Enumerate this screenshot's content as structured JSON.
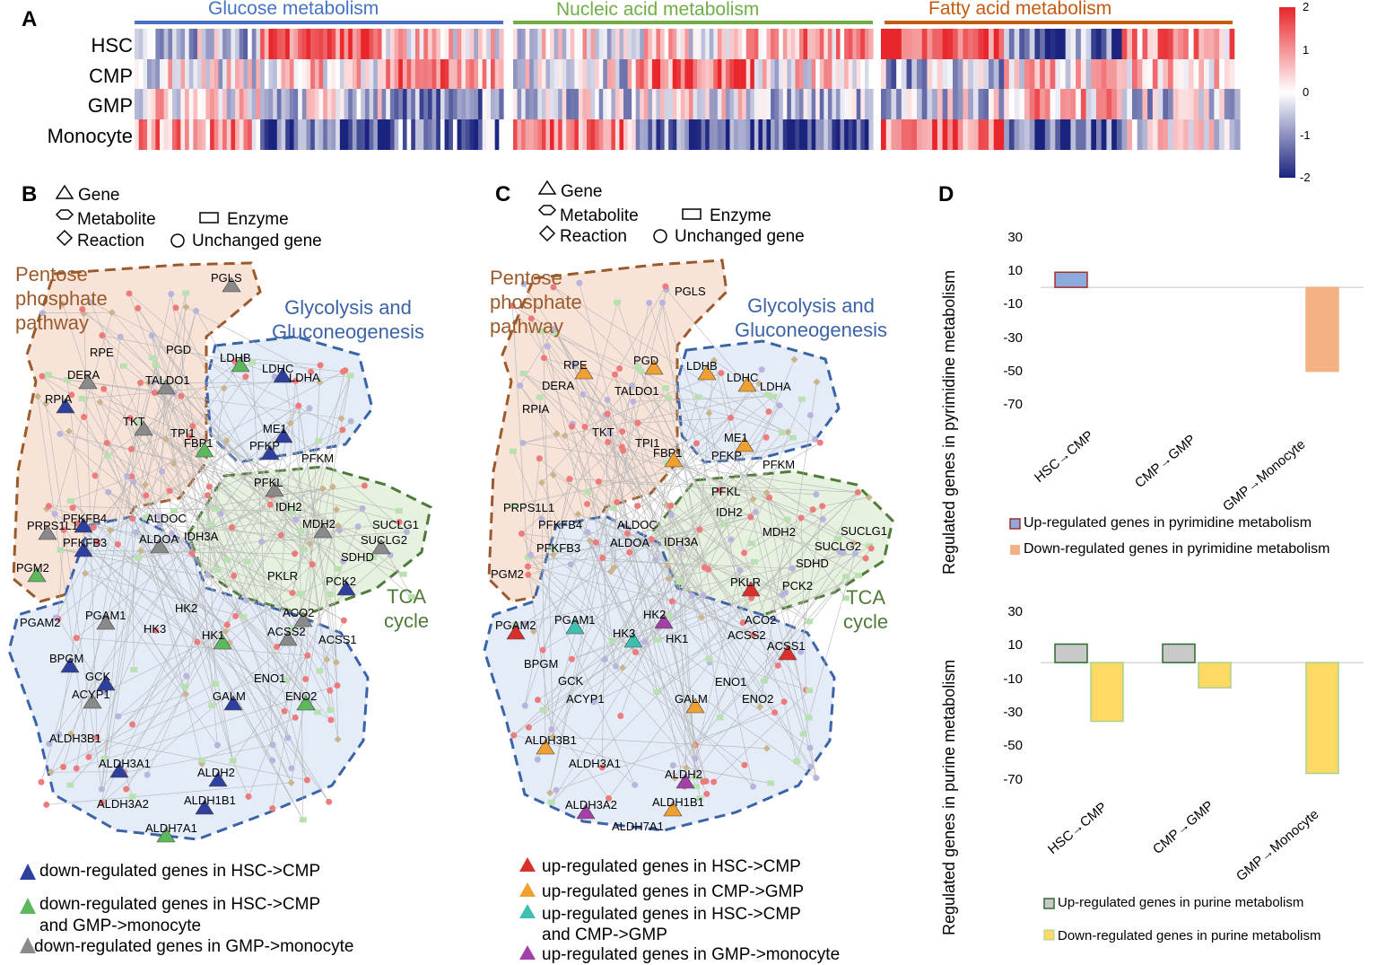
{
  "panel_a": {
    "letter": "A",
    "row_labels": [
      "HSC",
      "CMP",
      "GMP",
      "Monocyte"
    ],
    "groups": [
      {
        "title": "Glucose metabolism",
        "color": "#4472c4"
      },
      {
        "title": "Nucleic acid metabolism",
        "color": "#70ad47"
      },
      {
        "title": "Fatty acid metabolism",
        "color": "#c55a11"
      }
    ],
    "colorbar_ticks": [
      "2",
      "1",
      "0",
      "-1",
      "-2"
    ]
  },
  "legend_shapes": {
    "gene": "Gene",
    "metabolite": "Metabolite",
    "enzyme": "Enzyme",
    "reaction": "Reaction",
    "unchanged": "Unchanged gene"
  },
  "panel_b": {
    "letter": "B",
    "pathways": {
      "ppp": "Pentose\nphosphate\npathway",
      "glyco": "Glycolysis and\nGluconeogenesis",
      "tca": "TCA\ncycle"
    },
    "genes": [
      "PGLS",
      "PGD",
      "RPE",
      "DERA",
      "TALDO1",
      "RPIA",
      "TKT",
      "TPI1",
      "FBP1",
      "LDHB",
      "LDHC",
      "LDHA",
      "ME1",
      "PFKP",
      "PFKM",
      "PFKL",
      "IDH2",
      "PRPS1L1",
      "PFKFB4",
      "ALDOC",
      "ALDOA",
      "IDH3A",
      "MDH2",
      "SUCLG1",
      "SUCLG2",
      "PFKFB3",
      "SDHD",
      "PGM2",
      "PCK2",
      "PKLR",
      "PGAM2",
      "PGAM1",
      "HK3",
      "HK2",
      "HK1",
      "ACO2",
      "ACSS2",
      "ACSS1",
      "BPGM",
      "GCK",
      "ENO1",
      "ENO2",
      "ACYP1",
      "GALM",
      "ALDH3B1",
      "ALDH3A1",
      "ALDH2",
      "ALDH3A2",
      "ALDH1B1",
      "ALDH7A1"
    ],
    "legend": [
      {
        "text": "down-regulated genes in HSC->CMP",
        "color": "#2e3f9e"
      },
      {
        "text": "down-regulated genes in HSC->CMP\nand GMP->monocyte",
        "color": "#5cb85c"
      },
      {
        "text": "down-regulated genes in GMP->monocyte",
        "color": "#8a8a8a"
      }
    ]
  },
  "panel_c": {
    "letter": "C",
    "legend": [
      {
        "text": "up-regulated genes in HSC->CMP",
        "color": "#d9302c"
      },
      {
        "text": "up-regulated genes in CMP->GMP",
        "color": "#f0a030"
      },
      {
        "text": "up-regulated genes in HSC->CMP\nand CMP->GMP",
        "color": "#3fbfb0"
      },
      {
        "text": "up-regulated genes in GMP->monocyte",
        "color": "#a340a8"
      }
    ]
  },
  "panel_d": {
    "letter": "D",
    "chart_data": [
      {
        "type": "bar",
        "ylabel": "Regulated genes in pyrimidine metabolism",
        "categories": [
          "HSC→CMP",
          "CMP→GMP",
          "GMP→Monocyte"
        ],
        "yticks": [
          "30",
          "10",
          "-10",
          "-30",
          "-50",
          "-70"
        ],
        "ylim": [
          -70,
          30
        ],
        "series": [
          {
            "name": "Up-regulated genes in pyrimidine metabolism",
            "values": [
              9,
              0,
              0
            ],
            "fill": "#8ea9db",
            "stroke": "#a0312a"
          },
          {
            "name": "Down-regulated genes in pyrimidine metabolism",
            "values": [
              0,
              0,
              -50
            ],
            "fill": "#f4b183",
            "stroke": "#f4b183"
          }
        ]
      },
      {
        "type": "bar",
        "ylabel": "Regulated genes in purine metabolism",
        "categories": [
          "HSC→CMP",
          "CMP→GMP",
          "GMP→Monocyte"
        ],
        "yticks": [
          "30",
          "10",
          "-10",
          "-30",
          "-50",
          "-70"
        ],
        "ylim": [
          -70,
          30
        ],
        "series": [
          {
            "name": "Up-regulated genes in purine metabolism",
            "values": [
              11,
              11,
              0
            ],
            "fill": "#c9c9c9",
            "stroke": "#2e6b2e"
          },
          {
            "name": "Down-regulated genes in purine metabolism",
            "values": [
              -35,
              -15,
              -66
            ],
            "fill": "#ffd966",
            "stroke": "#a9d18e"
          }
        ]
      }
    ]
  }
}
